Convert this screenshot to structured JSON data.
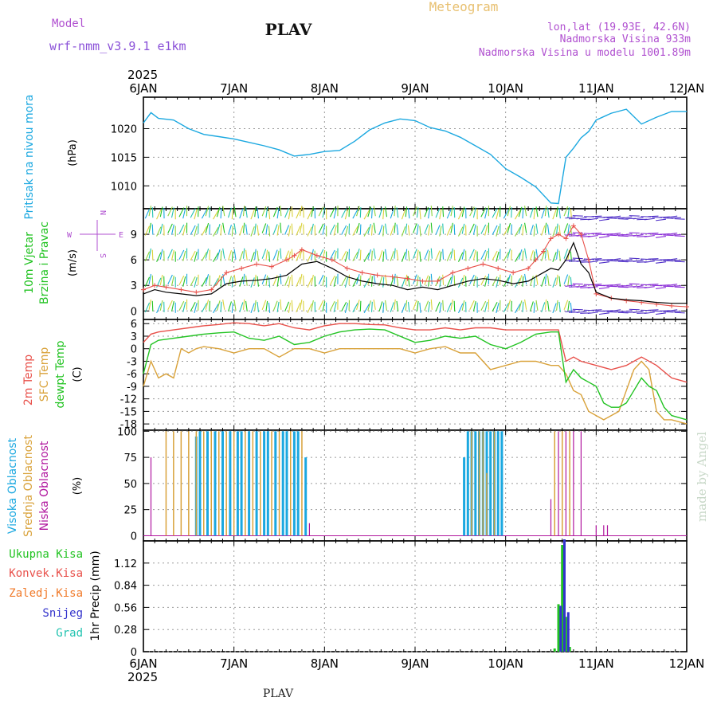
{
  "header": {
    "model_label": "Model",
    "model_name": "wrf-nmm_v3.9.1 e1km",
    "station": "PLAV",
    "chart_title": "Meteogram",
    "coords": "lon,lat (19.93E, 42.6N)",
    "elevation": "Nadmorska Visina 933m",
    "model_elevation": "Nadmorska Visina u modelu 1001.89m",
    "footer_station": "PLAV",
    "credit": "made by Angel"
  },
  "time_axis": {
    "year": "2025",
    "ticks": [
      "6JAN",
      "7JAN",
      "8JAN",
      "9JAN",
      "10JAN",
      "11JAN",
      "12JAN"
    ],
    "range_hours": [
      0,
      144
    ]
  },
  "colors": {
    "pressure": "#1ba8e0",
    "temp2m": "#e8504a",
    "sfc_temp": "#d9a23a",
    "dewpt": "#22c322",
    "high_cloud": "#1ba8e0",
    "mid_cloud": "#d9a23a",
    "low_cloud": "#b0169e",
    "total_precip": "#22c322",
    "conv_precip": "#e8504a",
    "frozen_precip": "#f07a2a",
    "snow": "#3333cc",
    "graupel": "#22c3b0",
    "wind_mean": "#000000",
    "wind_gust": "#e8504a",
    "compass": "#b050d0",
    "credit": "#c8d8c8"
  },
  "chart_data": [
    {
      "type": "line",
      "id": "pressure",
      "ylabel_left": "Pritisak na nivou mora",
      "ylabel_units": "(hPa)",
      "ylim": [
        1006,
        1025.5
      ],
      "yticks": [
        1010,
        1015,
        1020
      ],
      "grid": true,
      "series": [
        {
          "values_x": [
            0,
            2,
            4,
            8,
            12,
            16,
            20,
            24,
            28,
            32,
            36,
            40,
            44,
            48,
            52,
            56,
            60,
            64,
            68,
            72,
            76,
            80,
            84,
            88,
            92,
            96,
            100,
            104,
            108,
            110,
            112,
            114,
            116,
            118,
            120,
            124,
            128,
            132,
            136,
            140,
            144
          ],
          "values_y": [
            1021,
            1022.8,
            1021.8,
            1021.5,
            1020,
            1019,
            1018.6,
            1018.2,
            1017.6,
            1017,
            1016.3,
            1015.2,
            1015.5,
            1016,
            1016.2,
            1017.8,
            1019.8,
            1021,
            1021.7,
            1021.4,
            1020.2,
            1019.6,
            1018.5,
            1017,
            1015.5,
            1013,
            1011.5,
            1009.8,
            1007,
            1006.9,
            1015,
            1016.6,
            1018.4,
            1019.5,
            1021.5,
            1022.7,
            1023.4,
            1020.8,
            1022,
            1023,
            1023
          ]
        }
      ]
    },
    {
      "type": "line",
      "id": "wind",
      "ylabel_left": "10m Vjetar",
      "ylabel_left2": "Brzina i Pravac",
      "ylabel_units": "(m/s)",
      "ylim": [
        -1,
        12
      ],
      "yticks": [
        0,
        3,
        6,
        9
      ],
      "grid": true,
      "compass": {
        "n": "N",
        "s": "S",
        "e": "E",
        "w": "W"
      },
      "series": [
        {
          "name": "mean",
          "values_x": [
            0,
            3,
            6,
            10,
            14,
            18,
            22,
            26,
            30,
            34,
            38,
            42,
            46,
            50,
            54,
            58,
            62,
            66,
            70,
            74,
            78,
            82,
            86,
            90,
            94,
            98,
            102,
            104,
            106,
            108,
            110,
            112,
            114,
            116,
            118,
            120,
            124,
            128,
            132,
            136,
            140,
            144
          ],
          "values_y": [
            2,
            2.5,
            2.2,
            2,
            1.8,
            2,
            3.2,
            3.5,
            3.6,
            3.8,
            4.2,
            5.5,
            5.8,
            5,
            4,
            3.5,
            3.2,
            3,
            2.5,
            2.8,
            2.5,
            3,
            3.5,
            3.8,
            3.6,
            3.2,
            3.5,
            4,
            4.5,
            5,
            4.8,
            6,
            8,
            5.5,
            4.5,
            2.2,
            1.5,
            1.3,
            1.2,
            1,
            0.9,
            0.9
          ]
        },
        {
          "name": "gust",
          "values_x": [
            0,
            3,
            6,
            10,
            14,
            18,
            22,
            26,
            30,
            34,
            38,
            40,
            42,
            46,
            50,
            54,
            58,
            62,
            66,
            70,
            74,
            78,
            82,
            86,
            90,
            94,
            98,
            102,
            104,
            106,
            108,
            110,
            112,
            114,
            116,
            118,
            120,
            124,
            128,
            132,
            136,
            140,
            144
          ],
          "values_y": [
            2.5,
            3,
            2.8,
            2.5,
            2.2,
            2.5,
            4.5,
            5,
            5.5,
            5.2,
            6,
            6.5,
            7.2,
            6.5,
            6,
            5,
            4.5,
            4.2,
            4,
            3.8,
            3.5,
            3.5,
            4.5,
            5,
            5.5,
            5,
            4.5,
            5,
            6,
            7,
            8.5,
            9,
            8.5,
            10,
            9,
            6,
            2,
            1.5,
            1.2,
            1,
            0.8,
            0.6,
            0.5
          ]
        }
      ]
    },
    {
      "type": "line",
      "id": "temperature",
      "ylabel_left": "2m Temp",
      "ylabel_left2": "SFC Temp",
      "ylabel_left3": "dewpt Temp",
      "ylabel_units": "(C)",
      "ylim": [
        -19.5,
        7
      ],
      "yticks": [
        6,
        3,
        0,
        -3,
        -6,
        -9,
        -12,
        -15,
        -18
      ],
      "grid": true,
      "series": [
        {
          "name": "2m",
          "values_x": [
            0,
            2,
            4,
            8,
            12,
            16,
            20,
            24,
            28,
            32,
            36,
            40,
            44,
            48,
            52,
            56,
            60,
            64,
            68,
            72,
            76,
            80,
            84,
            88,
            92,
            96,
            100,
            104,
            108,
            110,
            112,
            114,
            116,
            120,
            124,
            128,
            132,
            136,
            140,
            144
          ],
          "values_y": [
            1.5,
            3.5,
            4,
            4.5,
            5,
            5.5,
            5.8,
            6.2,
            6,
            5.5,
            6,
            5,
            4.5,
            5.5,
            6,
            6,
            5.8,
            5.7,
            5,
            4.5,
            4.5,
            5,
            4.5,
            5,
            5,
            4.5,
            4.5,
            4.5,
            4.5,
            4.5,
            -3,
            -2,
            -3,
            -4,
            -5,
            -4,
            -2,
            -4,
            -7,
            -8
          ]
        },
        {
          "name": "sfc",
          "values_x": [
            0,
            2,
            4,
            6,
            8,
            10,
            12,
            14,
            16,
            20,
            24,
            28,
            32,
            36,
            40,
            44,
            48,
            52,
            56,
            60,
            64,
            68,
            72,
            76,
            80,
            84,
            88,
            92,
            96,
            100,
            104,
            108,
            110,
            112,
            114,
            116,
            118,
            120,
            122,
            124,
            126,
            128,
            130,
            132,
            134,
            136,
            138,
            140,
            144
          ],
          "values_y": [
            -9,
            -3,
            -7,
            -6,
            -7,
            0,
            -1,
            0,
            0.5,
            0,
            -1,
            0,
            0,
            -2,
            0,
            0,
            -1,
            0,
            0,
            0,
            0,
            0,
            -1,
            0,
            0.5,
            -1,
            -1,
            -5,
            -4,
            -3,
            -3,
            -4,
            -4,
            -6,
            -10,
            -11,
            -15,
            -16,
            -17,
            -16,
            -15,
            -10,
            -5,
            -3,
            -5,
            -15,
            -17,
            -17,
            -18
          ]
        },
        {
          "name": "dewpt",
          "values_x": [
            0,
            2,
            4,
            8,
            12,
            16,
            20,
            24,
            28,
            32,
            36,
            40,
            44,
            48,
            52,
            56,
            60,
            64,
            68,
            72,
            76,
            80,
            84,
            88,
            92,
            96,
            100,
            104,
            108,
            110,
            112,
            114,
            116,
            118,
            120,
            122,
            124,
            126,
            128,
            130,
            132,
            134,
            136,
            138,
            140,
            144
          ],
          "values_y": [
            -6,
            1,
            2,
            2.5,
            3,
            3.5,
            3.8,
            4,
            2.5,
            2,
            3,
            1,
            1.5,
            3,
            4,
            4.5,
            4.7,
            4.5,
            3,
            1.5,
            2,
            3,
            2.5,
            3,
            1,
            0,
            1.5,
            3.5,
            4,
            4,
            -8,
            -5,
            -7,
            -8,
            -9,
            -13,
            -14,
            -14,
            -13,
            -10,
            -7,
            -9,
            -10,
            -14,
            -16,
            -17
          ]
        }
      ]
    },
    {
      "type": "bar",
      "id": "clouds",
      "ylabel_left": "Visoka Oblacnost",
      "ylabel_left2": "Srednja Oblacnost",
      "ylabel_left3": "Niska Oblacnost",
      "ylabel_units": "(%)",
      "ylim": [
        -5,
        101
      ],
      "yticks": [
        0,
        25,
        50,
        75,
        100
      ],
      "grid": true,
      "series": [
        {
          "name": "high",
          "bars": [
            [
              14,
              95
            ],
            [
              15,
              100
            ],
            [
              17,
              100
            ],
            [
              19,
              100
            ],
            [
              21,
              100
            ],
            [
              23,
              100
            ],
            [
              25,
              100
            ],
            [
              26,
              100
            ],
            [
              28,
              100
            ],
            [
              30,
              100
            ],
            [
              32,
              100
            ],
            [
              33,
              100
            ],
            [
              35,
              100
            ],
            [
              37,
              100
            ],
            [
              38,
              100
            ],
            [
              40,
              100
            ],
            [
              41,
              100
            ],
            [
              43,
              75
            ],
            [
              85,
              75
            ],
            [
              86,
              100
            ],
            [
              87,
              100
            ],
            [
              88,
              100
            ],
            [
              89,
              100
            ],
            [
              90,
              100
            ],
            [
              91,
              100
            ],
            [
              92,
              100
            ],
            [
              93,
              100
            ],
            [
              94,
              100
            ],
            [
              95,
              100
            ]
          ]
        },
        {
          "name": "mid",
          "bars": [
            [
              6,
              100
            ],
            [
              8,
              100
            ],
            [
              10,
              100
            ],
            [
              12,
              100
            ],
            [
              14,
              100
            ],
            [
              16,
              100
            ],
            [
              18,
              100
            ],
            [
              20,
              100
            ],
            [
              22,
              100
            ],
            [
              24,
              100
            ],
            [
              27,
              100
            ],
            [
              29,
              100
            ],
            [
              31,
              100
            ],
            [
              34,
              100
            ],
            [
              36,
              100
            ],
            [
              39,
              100
            ],
            [
              42,
              100
            ],
            [
              87,
              100
            ],
            [
              89,
              100
            ],
            [
              90,
              100
            ],
            [
              91,
              60
            ],
            [
              93,
              100
            ],
            [
              109,
              100
            ],
            [
              111,
              100
            ],
            [
              113,
              100
            ]
          ]
        },
        {
          "name": "low",
          "bars": [
            [
              2,
              75
            ],
            [
              44,
              12
            ],
            [
              108,
              35
            ],
            [
              110,
              100
            ],
            [
              112,
              100
            ],
            [
              114,
              100
            ],
            [
              116,
              100
            ],
            [
              120,
              10
            ],
            [
              122,
              10
            ],
            [
              123,
              10
            ]
          ]
        }
      ]
    },
    {
      "type": "bar",
      "id": "precip",
      "ylabel_units": "1hr Precip (mm)",
      "legend": [
        "Ukupna Kisa",
        "Konvek.Kisa",
        "Zaledj.Kisa",
        "Snijeg",
        "Grad"
      ],
      "ylim": [
        0,
        1.4
      ],
      "yticks": [
        0,
        0.28,
        0.56,
        0.84,
        1.12
      ],
      "grid": true,
      "series": [
        {
          "name": "total",
          "bars": [
            [
              109,
              0.04
            ],
            [
              110,
              0.6
            ],
            [
              111,
              1.35
            ],
            [
              112,
              0.44
            ],
            [
              113,
              0.06
            ]
          ]
        },
        {
          "name": "snow",
          "bars": [
            [
              110.6,
              0.58
            ],
            [
              111.6,
              1.42
            ],
            [
              112.6,
              0.5
            ]
          ]
        }
      ]
    }
  ]
}
